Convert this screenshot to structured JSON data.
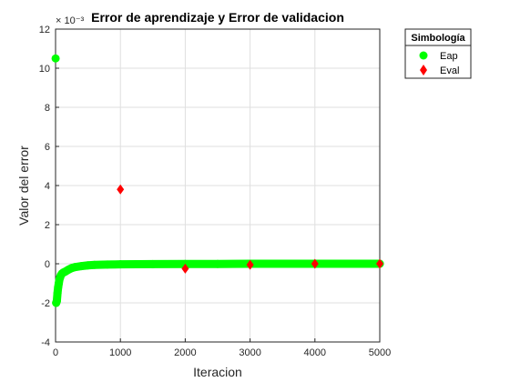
{
  "chart_data": {
    "type": "scatter",
    "title": "Error de aprendizaje y Error de validacion",
    "xlabel": "Iteracion",
    "ylabel": "Valor del error",
    "y_exponent_label": "× 10⁻³",
    "xlim": [
      0,
      5000
    ],
    "ylim": [
      -4,
      12
    ],
    "xticks": [
      0,
      1000,
      2000,
      3000,
      4000,
      5000
    ],
    "yticks": [
      -4,
      -2,
      0,
      2,
      4,
      6,
      8,
      10,
      12
    ],
    "xtick_labels": [
      "0",
      "1000",
      "2000",
      "3000",
      "4000",
      "5000"
    ],
    "ytick_labels": [
      "-4",
      "-2",
      "0",
      "2",
      "4",
      "6",
      "8",
      "10",
      "12"
    ],
    "grid": true,
    "legend": {
      "title": "Simbología",
      "placement": "outside-top-right",
      "entries": [
        "Eap",
        "Eval"
      ]
    },
    "series": [
      {
        "name": "Eap",
        "marker": "circle",
        "color": "#00ff00",
        "points": [
          [
            1,
            10.5
          ],
          [
            10,
            -2.0
          ],
          [
            20,
            -1.9
          ],
          [
            30,
            -1.5
          ],
          [
            40,
            -1.2
          ],
          [
            50,
            -1.0
          ],
          [
            60,
            -0.8
          ],
          [
            70,
            -0.7
          ],
          [
            80,
            -0.6
          ],
          [
            100,
            -0.5
          ],
          [
            120,
            -0.45
          ],
          [
            150,
            -0.4
          ],
          [
            200,
            -0.3
          ],
          [
            250,
            -0.22
          ],
          [
            300,
            -0.17
          ],
          [
            400,
            -0.12
          ],
          [
            500,
            -0.08
          ],
          [
            600,
            -0.06
          ],
          [
            800,
            -0.04
          ],
          [
            1000,
            -0.03
          ],
          [
            1500,
            -0.02
          ],
          [
            2000,
            -0.01
          ],
          [
            2500,
            -0.01
          ],
          [
            3000,
            0.0
          ],
          [
            3500,
            0.0
          ],
          [
            4000,
            0.0
          ],
          [
            4500,
            0.0
          ],
          [
            5000,
            0.0
          ]
        ]
      },
      {
        "name": "Eval",
        "marker": "diamond",
        "color": "#ff0000",
        "points": [
          [
            1000,
            3.8
          ],
          [
            2000,
            -0.25
          ],
          [
            3000,
            -0.05
          ],
          [
            4000,
            0.0
          ],
          [
            5000,
            0.0
          ]
        ]
      }
    ]
  }
}
